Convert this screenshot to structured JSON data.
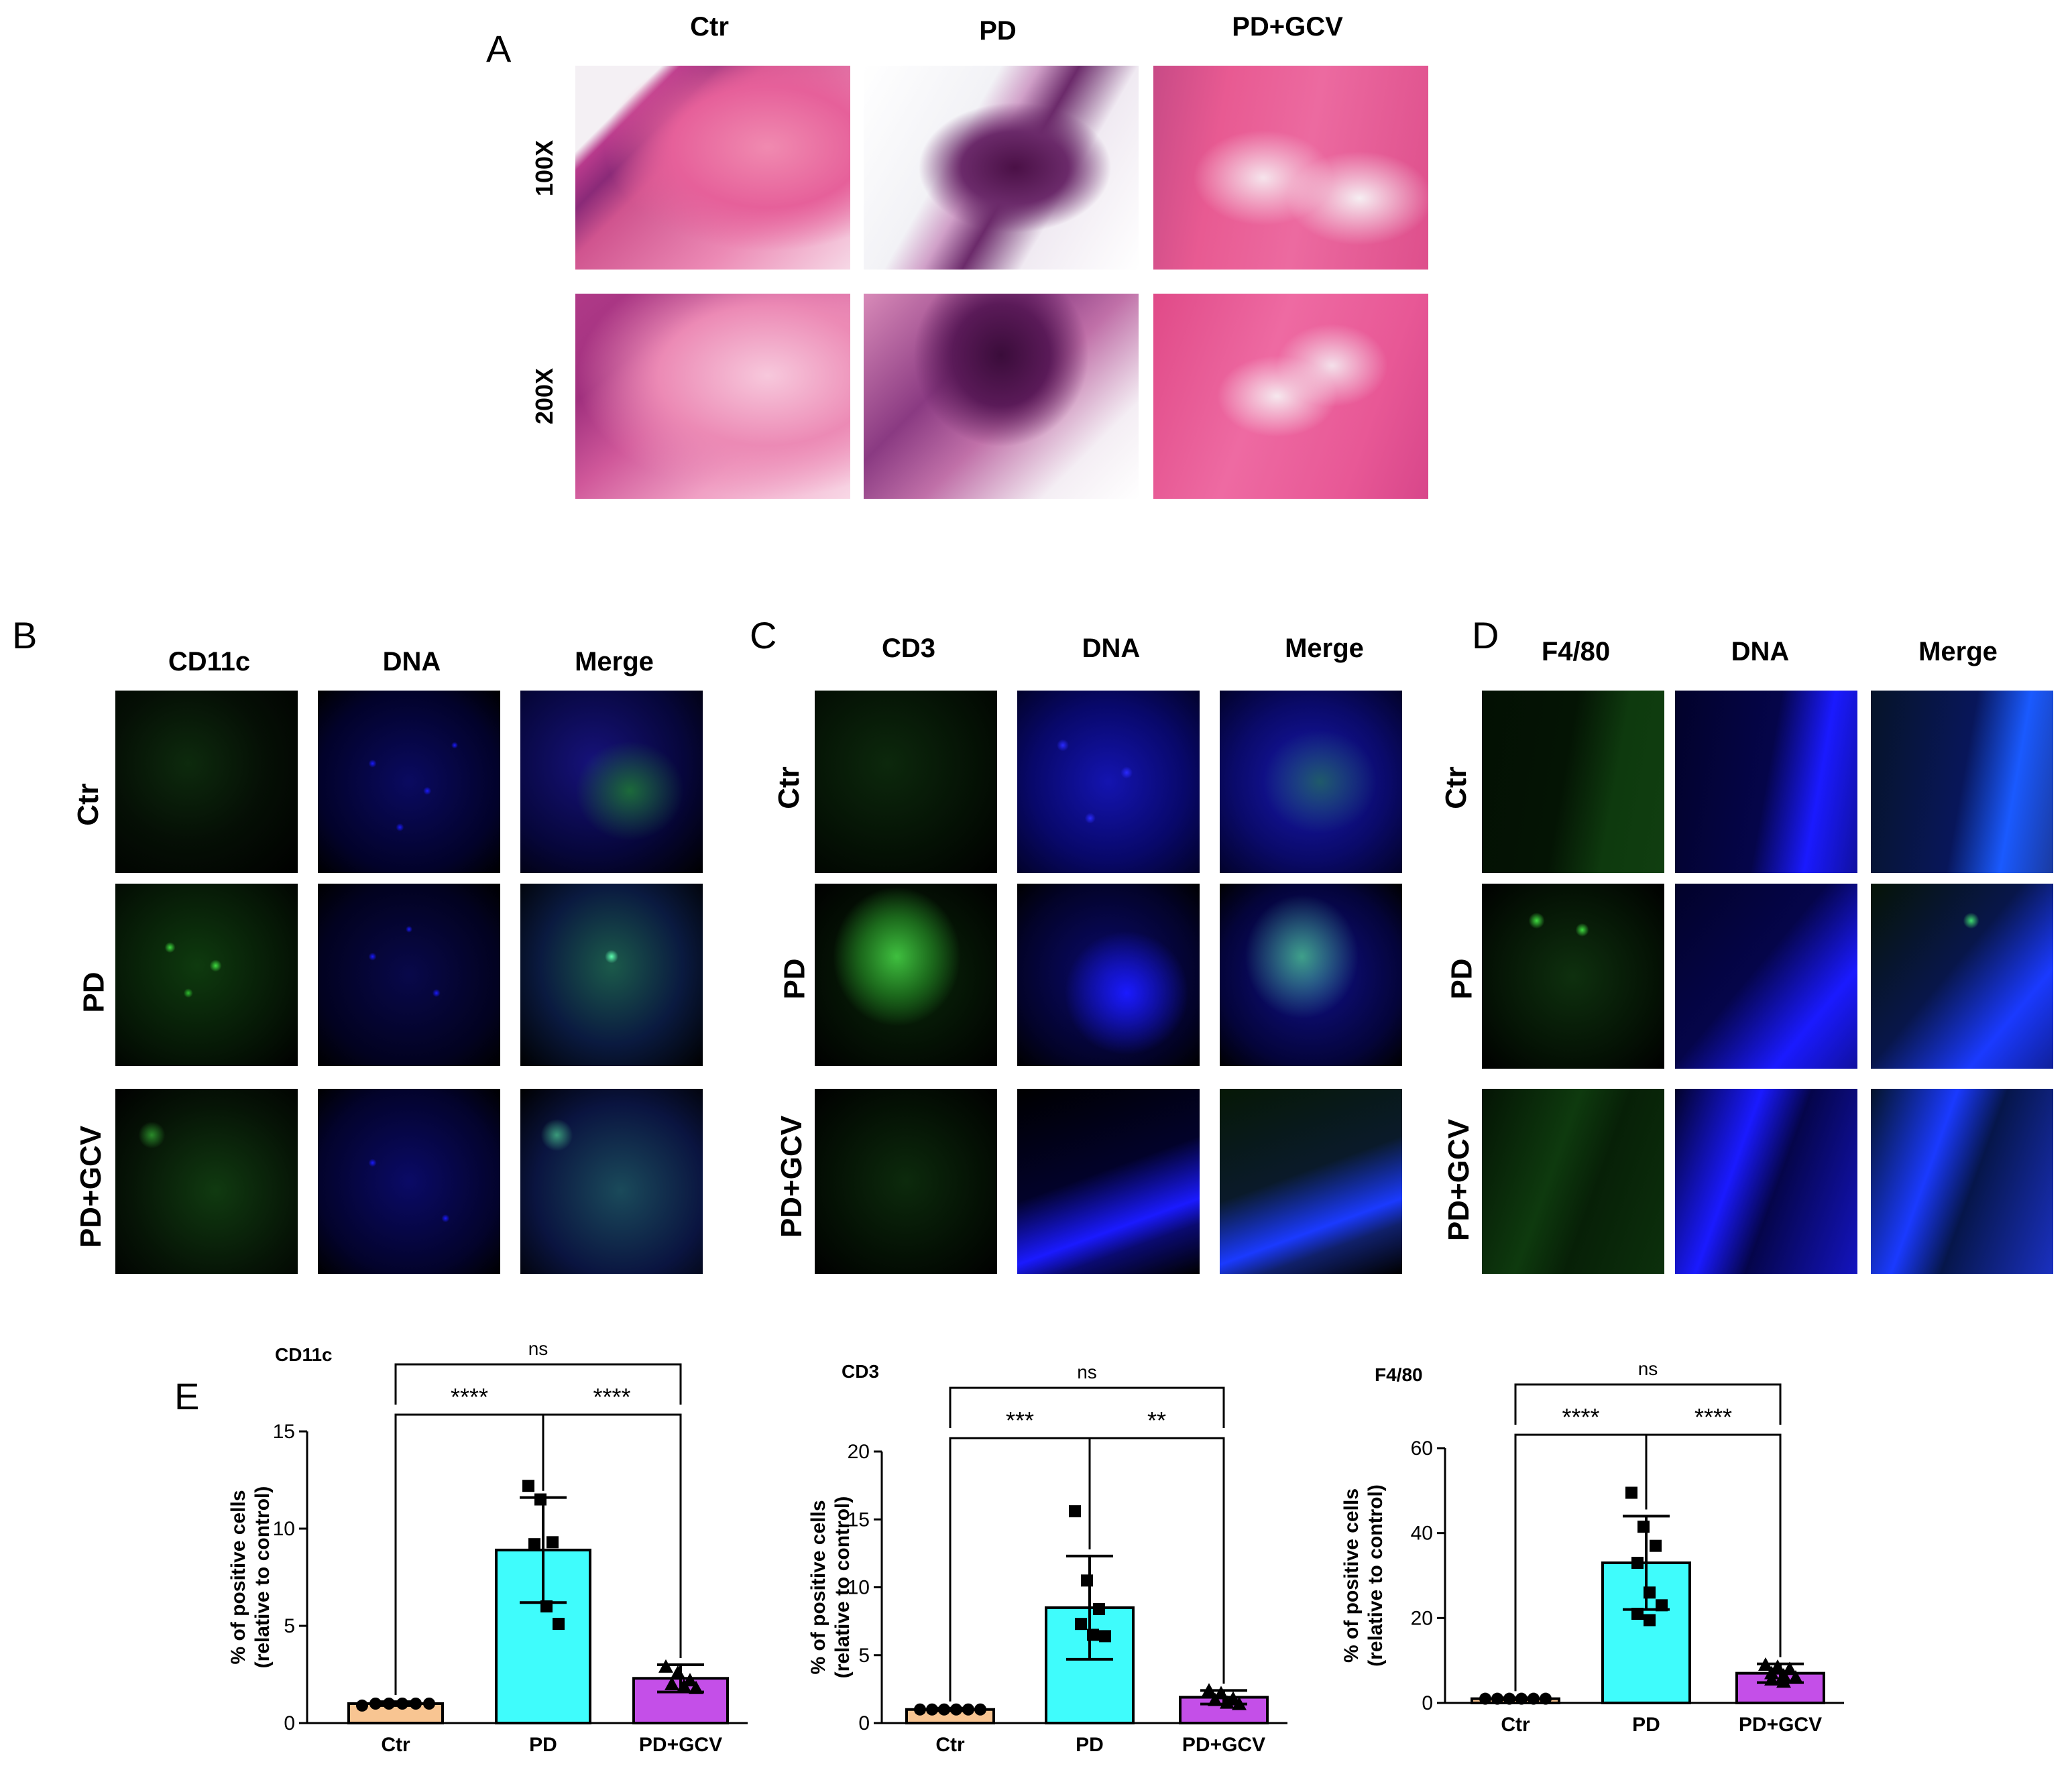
{
  "panel_a": {
    "letter": "A",
    "columns": [
      "Ctr",
      "PD",
      "PD+GCV"
    ],
    "rows": [
      "100X",
      "200X"
    ]
  },
  "panel_b": {
    "letter": "B",
    "columns": [
      "CD11c",
      "DNA",
      "Merge"
    ],
    "rows": [
      "Ctr",
      "PD",
      "PD+GCV"
    ]
  },
  "panel_c": {
    "letter": "C",
    "columns": [
      "CD3",
      "DNA",
      "Merge"
    ],
    "rows": [
      "Ctr",
      "PD",
      "PD+GCV"
    ]
  },
  "panel_d": {
    "letter": "D",
    "columns": [
      "F4/80",
      "DNA",
      "Merge"
    ],
    "rows": [
      "Ctr",
      "PD",
      "PD+GCV"
    ]
  },
  "panel_e": {
    "letter": "E"
  },
  "colors": {
    "he_pink": "#e0508a",
    "he_purple": "#7a1f6a",
    "dapi_blue": "#1a1aff",
    "fitc_green": "#2fbf2f",
    "bar_ctr": "#f8c592",
    "bar_pd": "#3ffcfc",
    "bar_gcv": "#c44fe8"
  },
  "chart_data": [
    {
      "type": "bar",
      "title": "CD11c",
      "categories": [
        "Ctr",
        "PD",
        "PD+GCV"
      ],
      "values": [
        1.0,
        8.9,
        2.3
      ],
      "sd": [
        0.1,
        2.7,
        0.7
      ],
      "points": [
        [
          0.9,
          1.0,
          1.0,
          1.0,
          1.0,
          1.0
        ],
        [
          12.2,
          11.5,
          9.3,
          9.2,
          6.0,
          5.1
        ],
        [
          2.9,
          2.6,
          2.2,
          2.0,
          1.9,
          1.8
        ]
      ],
      "markers": [
        "circle",
        "square",
        "triangle"
      ],
      "ylabel": [
        "% of positive cells",
        "(relative to control)"
      ],
      "ylim": [
        0,
        15
      ],
      "yticks": [
        0,
        5,
        10,
        15
      ],
      "comparisons": [
        {
          "from": 0,
          "to": 1,
          "label": "****"
        },
        {
          "from": 1,
          "to": 2,
          "label": "****"
        },
        {
          "from": 0,
          "to": 2,
          "label": "ns"
        }
      ]
    },
    {
      "type": "bar",
      "title": "CD3",
      "categories": [
        "Ctr",
        "PD",
        "PD+GCV"
      ],
      "values": [
        1.0,
        8.5,
        1.9
      ],
      "sd": [
        0.1,
        3.8,
        0.5
      ],
      "points": [
        [
          1.0,
          1.0,
          1.0,
          1.0,
          1.0,
          1.0
        ],
        [
          15.6,
          10.5,
          8.4,
          7.3,
          6.5,
          6.4
        ],
        [
          2.4,
          2.2,
          1.8,
          1.7,
          1.5,
          1.4
        ]
      ],
      "markers": [
        "circle",
        "square",
        "triangle"
      ],
      "ylabel": [
        "% of positive cells",
        "(relative to control)"
      ],
      "ylim": [
        0,
        20
      ],
      "yticks": [
        0,
        5,
        10,
        15,
        20
      ],
      "comparisons": [
        {
          "from": 0,
          "to": 1,
          "label": "***"
        },
        {
          "from": 1,
          "to": 2,
          "label": "**"
        },
        {
          "from": 0,
          "to": 2,
          "label": "ns"
        }
      ]
    },
    {
      "type": "bar",
      "title": "F4/80",
      "categories": [
        "Ctr",
        "PD",
        "PD+GCV"
      ],
      "values": [
        1.0,
        33.0,
        7.0
      ],
      "sd": [
        0.2,
        11.0,
        2.2
      ],
      "points": [
        [
          1.0,
          1.0,
          1.0,
          1.0,
          1.0,
          1.0
        ],
        [
          49.5,
          41.5,
          37.0,
          33.0,
          26.0,
          23.0,
          21.0,
          19.5
        ],
        [
          9.0,
          8.5,
          8.0,
          7.0,
          6.5,
          6.0,
          5.5,
          5.0
        ]
      ],
      "markers": [
        "circle",
        "square",
        "triangle"
      ],
      "ylabel": [
        "% of positive cells",
        "(relative to control)"
      ],
      "ylim": [
        0,
        60
      ],
      "yticks": [
        0,
        20,
        40,
        60
      ],
      "comparisons": [
        {
          "from": 0,
          "to": 1,
          "label": "****"
        },
        {
          "from": 1,
          "to": 2,
          "label": "****"
        },
        {
          "from": 0,
          "to": 2,
          "label": "ns"
        }
      ]
    }
  ]
}
